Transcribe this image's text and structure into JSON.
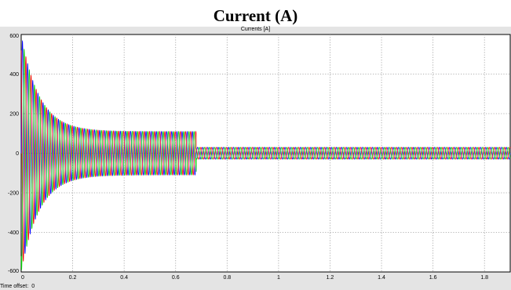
{
  "title": "Current (A)",
  "chart_data": {
    "type": "line",
    "scope_title": "Currents [A]",
    "xlim": [
      0,
      1.9
    ],
    "ylim": [
      -600,
      600
    ],
    "xticks": [
      0,
      0.2,
      0.4,
      0.6,
      0.8,
      1,
      1.2,
      1.4,
      1.6,
      1.8
    ],
    "xtick_labels": [
      "0",
      "0.2",
      "0.4",
      "0.6",
      "0.8",
      "1",
      "1.2",
      "1.4",
      "1.6",
      "1.8"
    ],
    "yticks": [
      600,
      400,
      200,
      0,
      -200,
      -400,
      -600
    ],
    "ytick_labels": [
      "600",
      "400",
      "200",
      "0",
      "-200",
      "-400",
      "-600"
    ],
    "grid": true,
    "time_offset_label": "Time offset:",
    "time_offset_value": "0",
    "series": [
      {
        "color": "#0000ff",
        "phase_deg": 0
      },
      {
        "color": "#ff0000",
        "phase_deg": 120
      },
      {
        "color": "#00d000",
        "phase_deg": 240
      }
    ],
    "signal": {
      "frequency_hz": 50,
      "initial_peak": 600,
      "steady_peak_before": 110,
      "decay_time_constant_s": 0.07,
      "switch_time_s": 0.68,
      "peak_after": 30
    }
  }
}
